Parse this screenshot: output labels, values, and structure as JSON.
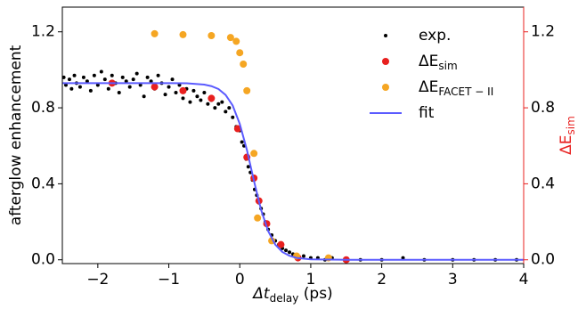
{
  "chart_data": {
    "type": "scatter",
    "xlabel": {
      "main": "Δt",
      "sub": "delay",
      "unit": " (ps)"
    },
    "ylabel": "afterglow enhancement",
    "y2label": {
      "main": "ΔE",
      "sub": "sim"
    },
    "y2color": "#e8201f",
    "xlim": [
      -2.5,
      4
    ],
    "ylim": [
      -0.02,
      1.33
    ],
    "y2lim": [
      -0.02,
      1.33
    ],
    "xticks": [
      {
        "value": -2,
        "label": "−2"
      },
      {
        "value": -1,
        "label": "−1"
      },
      0,
      1,
      2,
      3,
      4
    ],
    "yticks": [
      {
        "value": 0,
        "label": "0.0"
      },
      0.4,
      0.8,
      1.2
    ],
    "y2ticks": [
      {
        "value": 0,
        "label": "0.0"
      },
      0.4,
      0.8,
      1.2
    ],
    "legend": "upper right",
    "series": [
      {
        "name": "exp.",
        "kind": "dot",
        "color": "#000000",
        "x": [
          -2.48,
          -2.45,
          -2.4,
          -2.37,
          -2.33,
          -2.3,
          -2.25,
          -2.2,
          -2.15,
          -2.1,
          -2.05,
          -2.0,
          -1.95,
          -1.9,
          -1.85,
          -1.8,
          -1.75,
          -1.7,
          -1.65,
          -1.6,
          -1.55,
          -1.5,
          -1.45,
          -1.4,
          -1.35,
          -1.3,
          -1.25,
          -1.2,
          -1.15,
          -1.1,
          -1.05,
          -1.0,
          -0.95,
          -0.9,
          -0.85,
          -0.8,
          -0.75,
          -0.7,
          -0.65,
          -0.6,
          -0.55,
          -0.5,
          -0.45,
          -0.4,
          -0.35,
          -0.3,
          -0.25,
          -0.2,
          -0.15,
          -0.1,
          -0.05,
          0.0,
          0.03,
          0.06,
          0.09,
          0.12,
          0.15,
          0.18,
          0.21,
          0.24,
          0.27,
          0.3,
          0.33,
          0.36,
          0.4,
          0.45,
          0.5,
          0.55,
          0.6,
          0.65,
          0.7,
          0.75,
          0.8,
          0.9,
          1.0,
          1.1,
          1.2,
          1.3,
          1.5,
          1.7,
          2.0,
          2.3,
          2.6,
          3.0,
          3.3,
          3.6,
          3.9
        ],
        "values": [
          0.96,
          0.92,
          0.95,
          0.9,
          0.97,
          0.93,
          0.91,
          0.96,
          0.94,
          0.89,
          0.97,
          0.92,
          0.99,
          0.95,
          0.9,
          0.97,
          0.93,
          0.88,
          0.96,
          0.94,
          0.91,
          0.95,
          0.98,
          0.92,
          0.86,
          0.96,
          0.94,
          0.9,
          0.97,
          0.93,
          0.87,
          0.91,
          0.95,
          0.88,
          0.92,
          0.85,
          0.9,
          0.83,
          0.89,
          0.86,
          0.84,
          0.88,
          0.82,
          0.84,
          0.8,
          0.82,
          0.83,
          0.78,
          0.8,
          0.75,
          0.7,
          0.68,
          0.62,
          0.6,
          0.53,
          0.49,
          0.46,
          0.42,
          0.37,
          0.34,
          0.3,
          0.27,
          0.24,
          0.2,
          0.16,
          0.13,
          0.1,
          0.08,
          0.06,
          0.05,
          0.04,
          0.03,
          0.02,
          0.02,
          0.01,
          0.01,
          0,
          0.01,
          0,
          0,
          0,
          0.01,
          0,
          0,
          0,
          0,
          0
        ]
      },
      {
        "name": "ΔE",
        "name_sub": "sim",
        "kind": "marker",
        "color": "#e8201f",
        "axis": "y2",
        "x": [
          -1.8,
          -1.2,
          -0.8,
          -0.4,
          -0.03,
          0.1,
          0.2,
          0.27,
          0.38,
          0.58,
          0.82,
          1.5
        ],
        "values": [
          0.93,
          0.91,
          0.89,
          0.85,
          0.69,
          0.54,
          0.43,
          0.31,
          0.19,
          0.08,
          0.01,
          0
        ]
      },
      {
        "name": "ΔE",
        "name_sub": "FACET − II",
        "kind": "marker",
        "color": "#f5a623",
        "axis": "y2",
        "x": [
          -1.2,
          -0.8,
          -0.4,
          -0.13,
          -0.05,
          0.0,
          0.05,
          0.1,
          0.2,
          0.25,
          0.45,
          0.8,
          1.25
        ],
        "values": [
          1.19,
          1.185,
          1.18,
          1.17,
          1.15,
          1.09,
          1.03,
          0.89,
          0.56,
          0.22,
          0.1,
          0.02,
          0.01
        ]
      },
      {
        "name": "fit",
        "kind": "line",
        "color": "#5b5bff",
        "x": [
          -2.5,
          -1,
          -0.75,
          -0.5,
          -0.4,
          -0.3,
          -0.2,
          -0.1,
          0,
          0.1,
          0.2,
          0.3,
          0.4,
          0.5,
          0.6,
          0.7,
          0.8,
          1,
          1.25,
          1.5,
          2,
          3,
          4
        ],
        "values": [
          0.93,
          0.93,
          0.929,
          0.922,
          0.914,
          0.899,
          0.868,
          0.812,
          0.715,
          0.579,
          0.415,
          0.263,
          0.151,
          0.08,
          0.041,
          0.021,
          0.01,
          0.002,
          0.001,
          0,
          0,
          0,
          0
        ]
      }
    ]
  }
}
